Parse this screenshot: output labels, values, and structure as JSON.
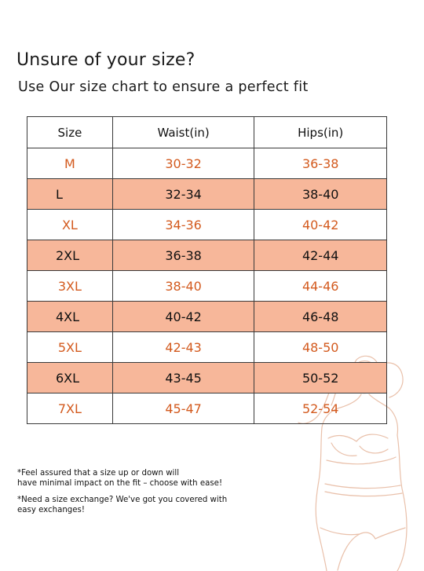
{
  "heading": {
    "title": "Unsure of your size?",
    "subtitle": "Use Our size chart to ensure a perfect fit"
  },
  "table": {
    "headers": [
      "Size",
      "Waist(in)",
      "Hips(in)"
    ],
    "rows": [
      {
        "size": "M",
        "waist": "30-32",
        "hips": "36-38",
        "style": "white"
      },
      {
        "size": "L",
        "waist": "32-34",
        "hips": "38-40",
        "style": "peach"
      },
      {
        "size": "XL",
        "waist": "34-36",
        "hips": "40-42",
        "style": "white"
      },
      {
        "size": "2XL",
        "waist": "36-38",
        "hips": "42-44",
        "style": "peach"
      },
      {
        "size": "3XL",
        "waist": "38-40",
        "hips": "44-46",
        "style": "white"
      },
      {
        "size": "4XL",
        "waist": "40-42",
        "hips": "46-48",
        "style": "peach"
      },
      {
        "size": "5XL",
        "waist": "42-43",
        "hips": "48-50",
        "style": "white"
      },
      {
        "size": "6XL",
        "waist": "43-45",
        "hips": "50-52",
        "style": "peach"
      },
      {
        "size": "7XL",
        "waist": "45-47",
        "hips": "52-54",
        "style": "white"
      }
    ]
  },
  "notes": {
    "fit": "*Feel assured that a size up or down will\nhave minimal impact on the fit – choose with ease!",
    "exchange": "*Need a size exchange? We've got you covered with\n easy exchanges!"
  },
  "colors": {
    "accent": "#d35a1e",
    "row_highlight": "#f7b79a",
    "figure_line": "#e9c0aa",
    "border": "#3a3a3a"
  },
  "decor": {
    "figure_icon": "body-outline-illustration"
  }
}
